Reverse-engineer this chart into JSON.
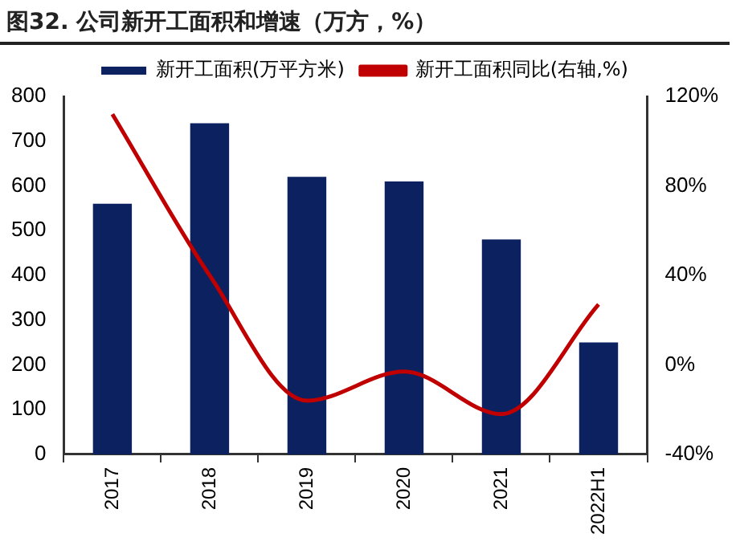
{
  "chart_data": {
    "type": "bar",
    "title": "图32. 公司新开工面积和增速（万方，%）",
    "categories": [
      "2017",
      "2018",
      "2019",
      "2020",
      "2021",
      "2022H1"
    ],
    "series": [
      {
        "name": "新开工面积(万平方米)",
        "color": "#0b2160",
        "values": [
          560,
          740,
          620,
          610,
          480,
          250
        ]
      },
      {
        "name": "新开工面积同比(右轴,%)",
        "type": "line",
        "axis": "y2",
        "color": "#c00000",
        "values": [
          112,
          40,
          -16,
          -3,
          -22,
          27
        ]
      }
    ],
    "ylim": [
      0,
      800
    ],
    "yticks": [
      0,
      100,
      200,
      300,
      400,
      500,
      600,
      700,
      800
    ],
    "y2lim": [
      -40,
      120
    ],
    "y2ticks": [
      {
        "value": -40,
        "label": "-40%"
      },
      {
        "value": 0,
        "label": "0%"
      },
      {
        "value": 40,
        "label": "40%"
      },
      {
        "value": 80,
        "label": "80%"
      },
      {
        "value": 120,
        "label": "120%"
      }
    ],
    "grid": false,
    "legend": "top",
    "marker": "none",
    "line_style": "solid"
  }
}
